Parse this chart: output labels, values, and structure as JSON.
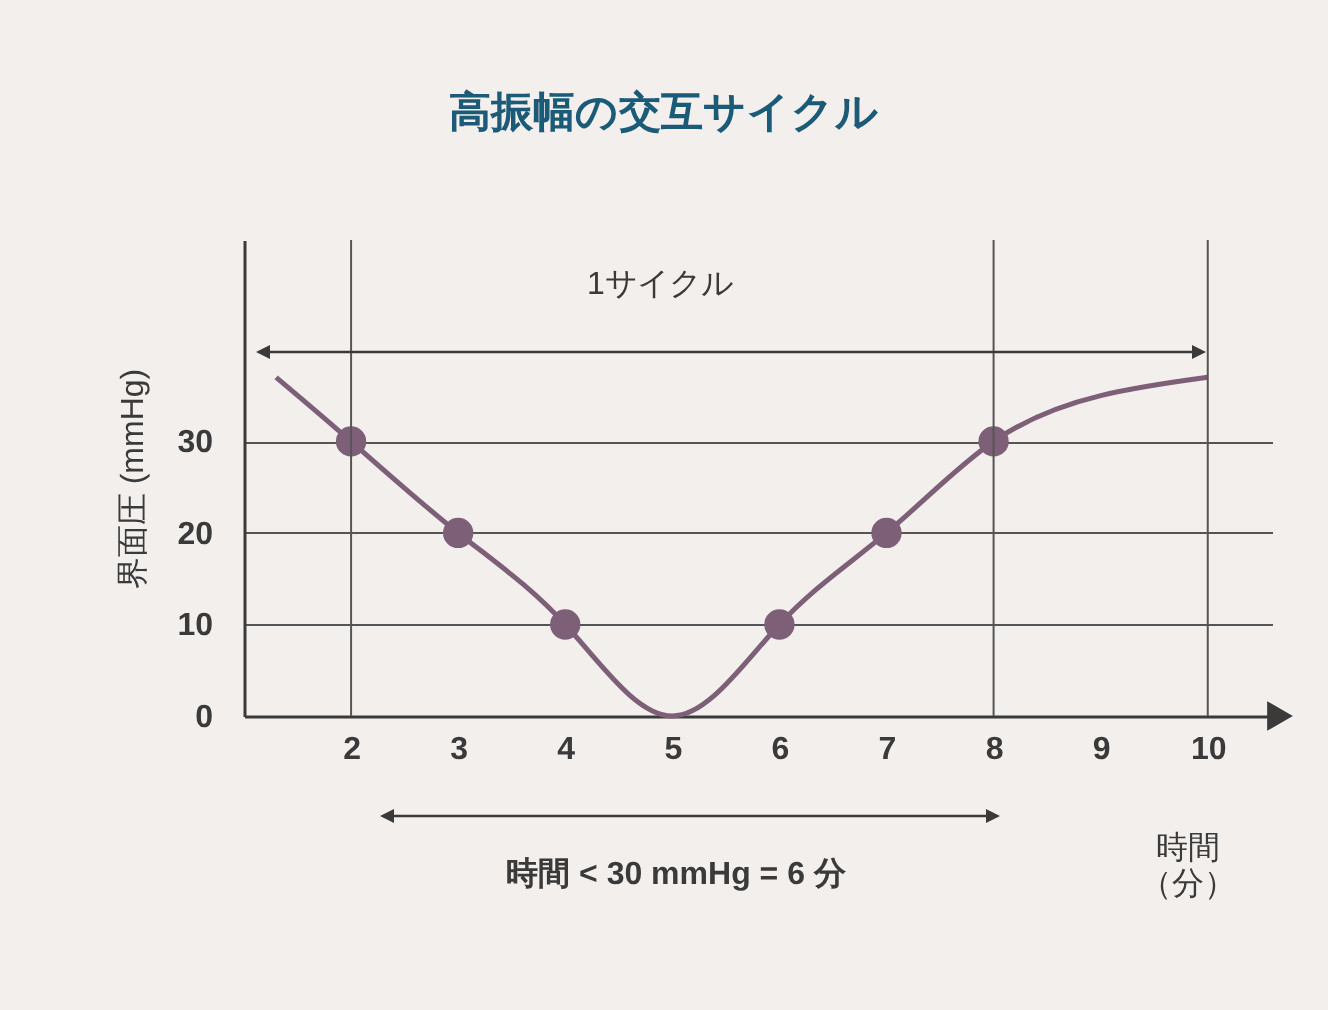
{
  "chart_data": {
    "type": "line",
    "title": "高振幅の交互サイクル",
    "xlabel": "時間（分）",
    "ylabel": "界面圧 (mmHg)",
    "xlim": [
      1,
      10.6
    ],
    "xticks": [
      2,
      3,
      4,
      5,
      6,
      7,
      8,
      9,
      10
    ],
    "ylim": [
      0,
      52
    ],
    "yticks": [
      0,
      10,
      20,
      30
    ],
    "grid": "y",
    "series": [
      {
        "color": "#7d6078",
        "marker": "none",
        "x": [
          1.3,
          2,
          3,
          4,
          5,
          6,
          7,
          8,
          9,
          10
        ],
        "values": [
          37,
          30,
          20,
          10,
          0,
          10,
          20,
          30,
          35,
          37
        ]
      },
      {
        "type": "scatter",
        "color": "#7d6078",
        "marker": "circle",
        "x": [
          2,
          3,
          4,
          6,
          7,
          8
        ],
        "values": [
          30,
          20,
          10,
          10,
          20,
          30
        ]
      }
    ],
    "ref_lines": [
      {
        "axis": "x",
        "value": 2
      },
      {
        "axis": "x",
        "value": 8
      },
      {
        "axis": "x",
        "value": 10
      }
    ],
    "annotations": [
      "1サイクル",
      "時間 < 30 mmHg = 6 分"
    ]
  }
}
